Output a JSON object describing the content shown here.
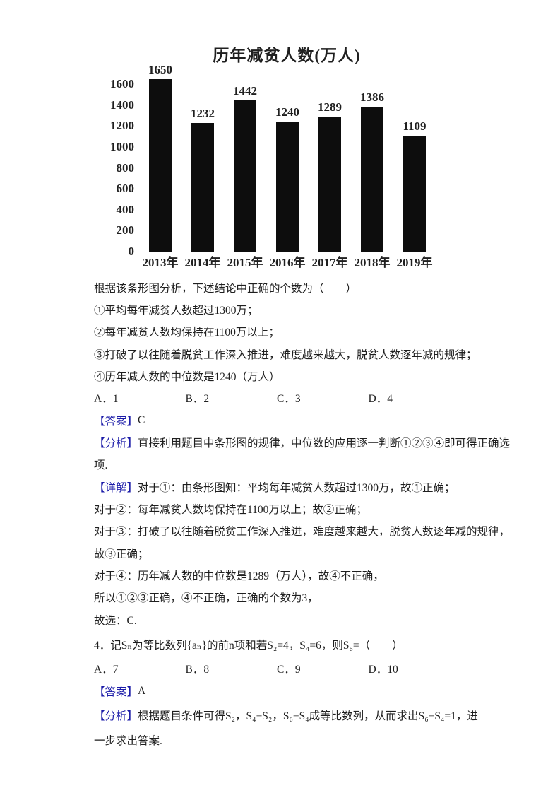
{
  "page": {
    "background": "#ffffff",
    "text_color": "#1f1f1f",
    "label_blue": "#1b1ba8",
    "bar_color": "#0d0d0d"
  },
  "chart_data": {
    "type": "bar",
    "title": "历年减贫人数(万人)",
    "categories": [
      "2013年",
      "2014年",
      "2015年",
      "2016年",
      "2017年",
      "2018年",
      "2019年"
    ],
    "values": [
      1650,
      1232,
      1442,
      1240,
      1289,
      1386,
      1109
    ],
    "xlabel": "",
    "ylabel": "",
    "ylim": [
      0,
      1650
    ],
    "yticks": [
      0,
      200,
      400,
      600,
      800,
      1000,
      1200,
      1400,
      1600
    ],
    "grid": false,
    "legend_position": "none",
    "data_labels": true,
    "bar_color": "#0d0d0d"
  },
  "document": {
    "lines": [
      {
        "kind": "text",
        "name": "question3-stem",
        "text": "根据该条形图分析，下述结论中正确的个数为（　　）"
      },
      {
        "kind": "text",
        "name": "statement-1",
        "text": "①平均每年减贫人数超过1300万；"
      },
      {
        "kind": "text",
        "name": "statement-2",
        "text": "②每年减贫人数均保持在1100万以上；"
      },
      {
        "kind": "text",
        "name": "statement-3",
        "text": "③打破了以往随着脱贫工作深入推进，难度越来越大，脱贫人数逐年减的规律；"
      },
      {
        "kind": "text",
        "name": "statement-4",
        "text": "④历年减人数的中位数是1240（万人）"
      },
      {
        "kind": "options",
        "name": "question3-options",
        "items": [
          "A．1",
          "B．2",
          "C．3",
          "D．4"
        ]
      },
      {
        "kind": "labeled",
        "name": "question3-answer",
        "label": "【答案】",
        "text": "C"
      },
      {
        "kind": "labeled",
        "name": "question3-analysis",
        "label": "【分析】",
        "text": "直接利用题目中条形图的规律，中位数的应用逐一判断①②③④即可得正确选"
      },
      {
        "kind": "text",
        "name": "question3-analysis-wrap",
        "text": "项."
      },
      {
        "kind": "labeled",
        "name": "question3-explain",
        "label": "【详解】",
        "text": "对于①：由条形图知：平均每年减贫人数超过1300万，故①正确；"
      },
      {
        "kind": "text",
        "name": "explain-point-2",
        "text": "对于②：每年减贫人数均保持在1100万以上；故②正确；"
      },
      {
        "kind": "text",
        "name": "explain-point-3",
        "text": "对于③：打破了以往随着脱贫工作深入推进，难度越来越大，脱贫人数逐年减的规律，"
      },
      {
        "kind": "text",
        "name": "explain-point-3-wrap",
        "text": "故③正确；"
      },
      {
        "kind": "text",
        "name": "explain-point-4",
        "text": "对于④：历年减人数的中位数是1289（万人），故④不正确，"
      },
      {
        "kind": "text",
        "name": "explain-conclusion",
        "text": "所以①②③正确，④不正确，正确的个数为3，"
      },
      {
        "kind": "text",
        "name": "explain-choice",
        "text": "故选：C."
      },
      {
        "kind": "text",
        "name": "question4-stem",
        "tall": true,
        "text": "4．记Sₙ为等比数列{aₙ}的前n项和若S₂=4，S₄=6，则S₆=（　　）"
      },
      {
        "kind": "options",
        "name": "question4-options",
        "items": [
          "A．7",
          "B．8",
          "C．9",
          "D．10"
        ]
      },
      {
        "kind": "labeled",
        "name": "question4-answer",
        "label": "【答案】",
        "text": "A"
      },
      {
        "kind": "labeled",
        "name": "question4-analysis",
        "label": "【分析】",
        "tall": true,
        "text": "根据题目条件可得S₂，S₄−S₂，S₆−S₄成等比数列，从而求出S₆−S₄=1，进"
      },
      {
        "kind": "text",
        "name": "question4-analysis-wrap",
        "text": "一步求出答案."
      }
    ]
  }
}
